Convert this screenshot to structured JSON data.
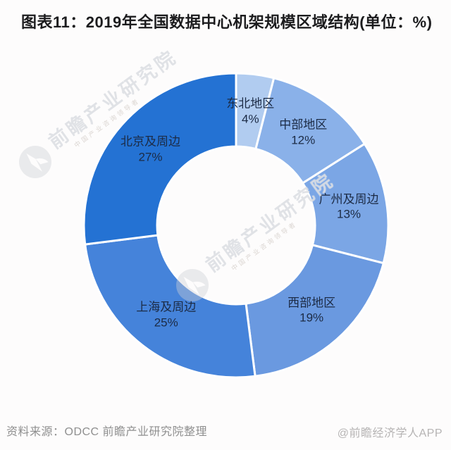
{
  "title": "图表11：2019年全国数据中心机架规模区域结构(单位：%)",
  "chart_data": {
    "type": "pie",
    "subtype": "donut",
    "unit": "%",
    "title": "2019年全国数据中心机架规模区域结构",
    "start_angle_deg": 0,
    "direction": "clockwise",
    "inner_radius_ratio": 0.52,
    "legend_position": "none",
    "labels_on_slices": true,
    "segments": [
      {
        "label": "东北地区",
        "value": 4,
        "color": "#b1ccf0"
      },
      {
        "label": "中部地区",
        "value": 12,
        "color": "#8ab1e9"
      },
      {
        "label": "广州及周边",
        "value": 13,
        "color": "#7ba6e5"
      },
      {
        "label": "西部地区",
        "value": 19,
        "color": "#6a99e0"
      },
      {
        "label": "上海及周边",
        "value": 25,
        "color": "#4583da"
      },
      {
        "label": "北京及周边",
        "value": 27,
        "color": "#2472d3"
      }
    ],
    "slice_border_color": "#ffffff",
    "label_color": "#1c2b45"
  },
  "watermark": {
    "brand": "前瞻产业研究院",
    "tagline": "中国产业咨询领导者"
  },
  "footer": {
    "source": "资料来源：ODCC 前瞻产业研究院整理",
    "credit": "@前瞻经济学人APP"
  }
}
